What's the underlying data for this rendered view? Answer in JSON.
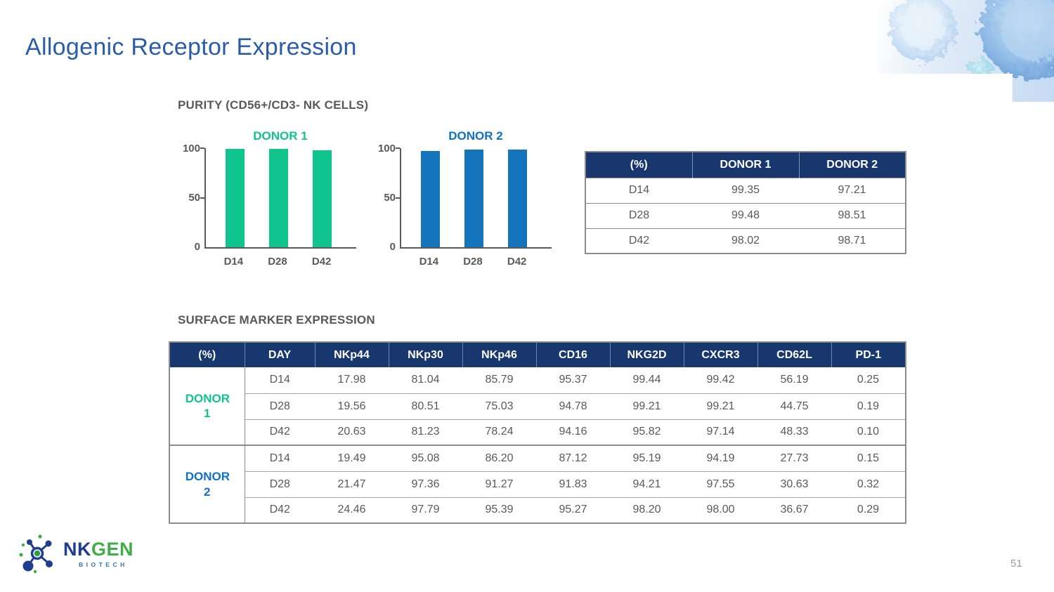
{
  "slide": {
    "title": "Allogenic Receptor Expression",
    "page_number": "51"
  },
  "colors": {
    "title_blue": "#2A5CAE",
    "header_navy": "#17376E",
    "body_gray": "#595959",
    "donor1_green": "#0FC48D",
    "donor2_blue": "#0D72C6"
  },
  "purity": {
    "heading": "PURITY (CD56+/CD3- NK CELLS)",
    "table": {
      "headers": [
        "(%)",
        "DONOR 1",
        "DONOR 2"
      ],
      "rows": [
        [
          "D14",
          "99.35",
          "97.21"
        ],
        [
          "D28",
          "99.48",
          "98.51"
        ],
        [
          "D42",
          "98.02",
          "98.71"
        ]
      ]
    }
  },
  "chart_data": [
    {
      "type": "bar",
      "title": "DONOR 1",
      "categories": [
        "D14",
        "D28",
        "D42"
      ],
      "values": [
        99.35,
        99.48,
        98.02
      ],
      "ylim": [
        0,
        100
      ],
      "yticks": [
        0,
        50,
        100
      ],
      "bar_color": "#0FC48D",
      "title_color": "#0FC48D",
      "grid": false,
      "legend": "none"
    },
    {
      "type": "bar",
      "title": "DONOR 2",
      "categories": [
        "D14",
        "D28",
        "D42"
      ],
      "values": [
        97.21,
        98.51,
        98.71
      ],
      "ylim": [
        0,
        100
      ],
      "yticks": [
        0,
        50,
        100
      ],
      "bar_color": "#1374BC",
      "title_color": "#0D72C6",
      "grid": false,
      "legend": "none"
    }
  ],
  "surface": {
    "heading": "SURFACE MARKER EXPRESSION",
    "headers": [
      "(%)",
      "DAY",
      "NKp44",
      "NKp30",
      "NKp46",
      "CD16",
      "NKG2D",
      "CXCR3",
      "CD62L",
      "PD-1"
    ],
    "groups": [
      {
        "donor": "DONOR 1",
        "color": "#0FC48D",
        "rows": [
          [
            "D14",
            "17.98",
            "81.04",
            "85.79",
            "95.37",
            "99.44",
            "99.42",
            "56.19",
            "0.25"
          ],
          [
            "D28",
            "19.56",
            "80.51",
            "75.03",
            "94.78",
            "99.21",
            "99.21",
            "44.75",
            "0.19"
          ],
          [
            "D42",
            "20.63",
            "81.23",
            "78.24",
            "94.16",
            "95.82",
            "97.14",
            "48.33",
            "0.10"
          ]
        ]
      },
      {
        "donor": "DONOR 2",
        "color": "#0D72C6",
        "rows": [
          [
            "D14",
            "19.49",
            "95.08",
            "86.20",
            "87.12",
            "95.19",
            "94.19",
            "27.73",
            "0.15"
          ],
          [
            "D28",
            "21.47",
            "97.36",
            "91.27",
            "91.83",
            "94.21",
            "97.55",
            "30.63",
            "0.32"
          ],
          [
            "D42",
            "24.46",
            "97.79",
            "95.39",
            "95.27",
            "98.20",
            "98.00",
            "36.67",
            "0.29"
          ]
        ]
      }
    ]
  },
  "logo": {
    "nk": "NK",
    "gen": "GEN",
    "biotech": "BIOTECH",
    "nk_color": "#1F3E8F",
    "gen_color": "#3FAE49",
    "biotech_color": "#2E75B6"
  }
}
